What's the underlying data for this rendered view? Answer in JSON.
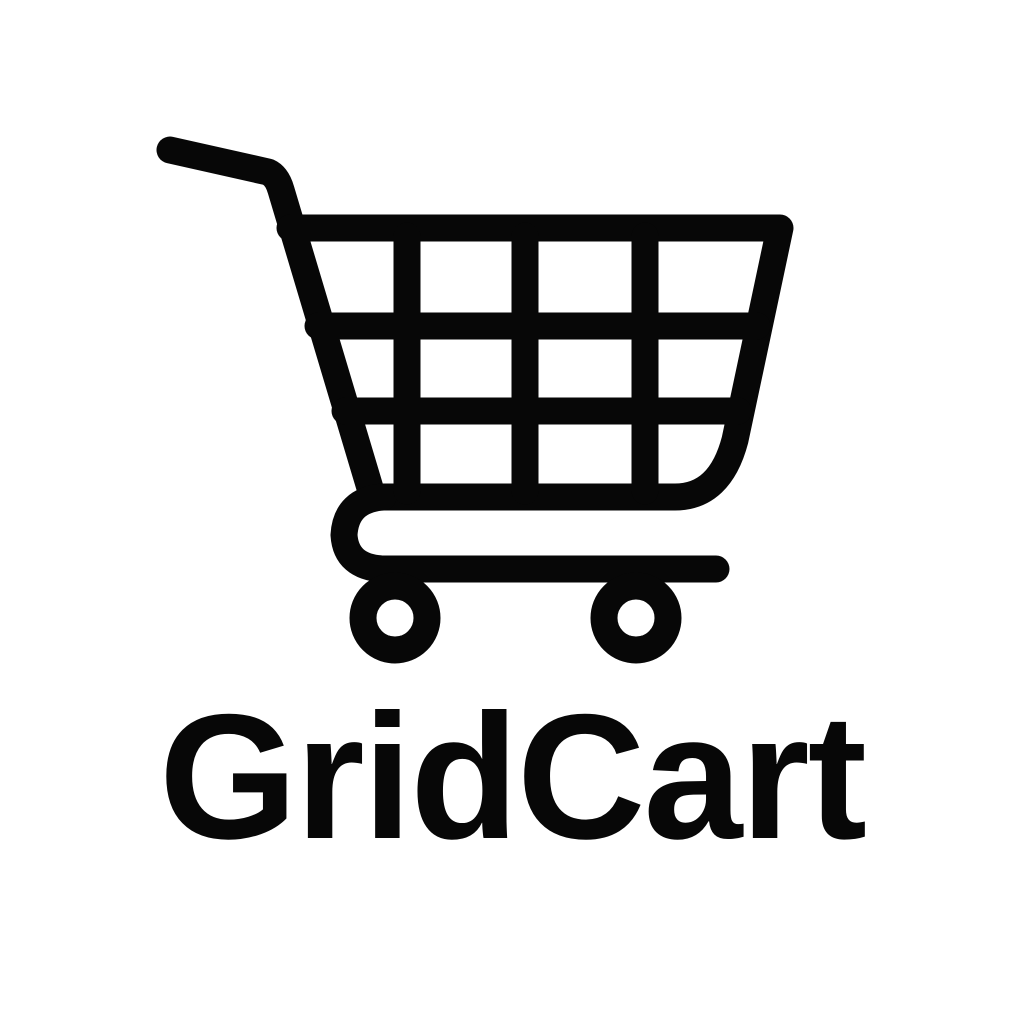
{
  "logo": {
    "wordmark": "GridCart",
    "icon": "shopping-cart-icon",
    "ink_color": "#070707",
    "background_color": "#ffffff"
  }
}
